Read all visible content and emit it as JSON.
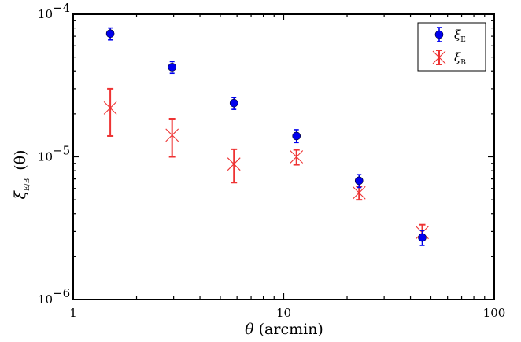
{
  "chart_data": {
    "type": "scatter",
    "xscale": "log",
    "yscale": "log",
    "xlim": [
      1,
      100
    ],
    "ylim": [
      1e-06,
      0.0001
    ],
    "xticks": [
      {
        "value": 1,
        "label": "1"
      },
      {
        "value": 10,
        "label": "10"
      },
      {
        "value": 100,
        "label": "100"
      }
    ],
    "yticks": [
      {
        "value": 1e-06,
        "base": "10",
        "exp": "−6"
      },
      {
        "value": 1e-05,
        "base": "10",
        "exp": "−5"
      },
      {
        "value": 0.0001,
        "base": "10",
        "exp": "−4"
      }
    ],
    "xlabel_symbol": "θ",
    "xlabel_unit": " (arcmin)",
    "ylabel_symbol": "ξ",
    "ylabel_sub": "E/B",
    "ylabel_arg": "(θ)",
    "legend_position": "top-right",
    "grid": false,
    "series": [
      {
        "name": "ξ",
        "name_sub": "E",
        "marker": "circle",
        "color": "#0000ee",
        "points": [
          {
            "x": 1.5,
            "y": 7.3e-05,
            "ylo": 6.6e-05,
            "yhi": 8e-05
          },
          {
            "x": 2.95,
            "y": 4.25e-05,
            "ylo": 3.85e-05,
            "yhi": 4.65e-05
          },
          {
            "x": 5.8,
            "y": 2.38e-05,
            "ylo": 2.15e-05,
            "yhi": 2.6e-05
          },
          {
            "x": 11.5,
            "y": 1.4e-05,
            "ylo": 1.26e-05,
            "yhi": 1.55e-05
          },
          {
            "x": 22.8,
            "y": 6.8e-06,
            "ylo": 6.1e-06,
            "yhi": 7.5e-06
          },
          {
            "x": 45.5,
            "y": 2.72e-06,
            "ylo": 2.4e-06,
            "yhi": 3.05e-06
          }
        ]
      },
      {
        "name": "ξ",
        "name_sub": "B",
        "marker": "x",
        "color": "#ee3333",
        "points": [
          {
            "x": 1.5,
            "y": 2.2e-05,
            "ylo": 1.4e-05,
            "yhi": 3e-05
          },
          {
            "x": 2.95,
            "y": 1.42e-05,
            "ylo": 1e-05,
            "yhi": 1.85e-05
          },
          {
            "x": 5.8,
            "y": 8.9e-06,
            "ylo": 6.6e-06,
            "yhi": 1.13e-05
          },
          {
            "x": 11.5,
            "y": 1e-05,
            "ylo": 8.8e-06,
            "yhi": 1.12e-05
          },
          {
            "x": 22.8,
            "y": 5.6e-06,
            "ylo": 5e-06,
            "yhi": 6.2e-06
          },
          {
            "x": 45.5,
            "y": 2.95e-06,
            "ylo": 2.6e-06,
            "yhi": 3.35e-06
          }
        ]
      }
    ]
  }
}
